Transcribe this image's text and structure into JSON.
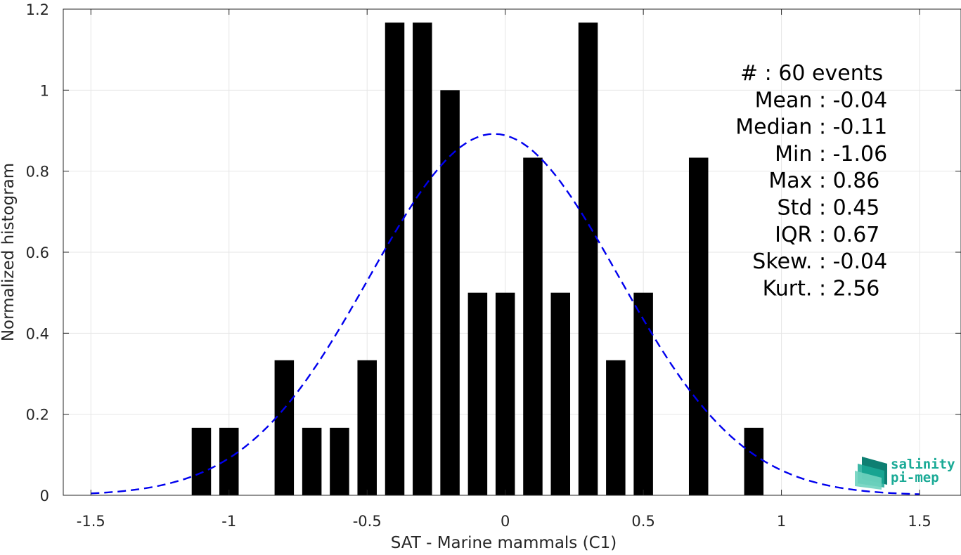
{
  "chart_data": {
    "type": "bar",
    "title": "",
    "xlabel": "SAT - Marine mammals (C1)",
    "ylabel": "Normalized histogram",
    "xlim": [
      -1.6,
      1.65
    ],
    "ylim": [
      0,
      1.2
    ],
    "xticks": [
      -1.5,
      -1,
      -0.5,
      0,
      0.5,
      1,
      1.5
    ],
    "xtick_labels": [
      "-1.5",
      "-1",
      "-0.5",
      "0",
      "0.5",
      "1",
      "1.5"
    ],
    "yticks": [
      0,
      0.2,
      0.4,
      0.6,
      0.8,
      1,
      1.2
    ],
    "ytick_labels": [
      "0",
      "0.2",
      "0.4",
      "0.6",
      "0.8",
      "1",
      "1.2"
    ],
    "grid": true,
    "bar_color": "#000000",
    "bar_width": 0.07,
    "bars": [
      {
        "x": -1.1,
        "y": 0.1667
      },
      {
        "x": -1.0,
        "y": 0.1667
      },
      {
        "x": -0.8,
        "y": 0.3333
      },
      {
        "x": -0.7,
        "y": 0.1667
      },
      {
        "x": -0.6,
        "y": 0.1667
      },
      {
        "x": -0.5,
        "y": 0.3333
      },
      {
        "x": -0.4,
        "y": 1.1667
      },
      {
        "x": -0.3,
        "y": 1.1667
      },
      {
        "x": -0.2,
        "y": 1.0
      },
      {
        "x": -0.1,
        "y": 0.5
      },
      {
        "x": 0.0,
        "y": 0.5
      },
      {
        "x": 0.1,
        "y": 0.8333
      },
      {
        "x": 0.2,
        "y": 0.5
      },
      {
        "x": 0.3,
        "y": 1.1667
      },
      {
        "x": 0.4,
        "y": 0.3333
      },
      {
        "x": 0.5,
        "y": 0.5
      },
      {
        "x": 0.7,
        "y": 0.8333
      },
      {
        "x": 0.9,
        "y": 0.1667
      }
    ],
    "fit_curve": {
      "color": "#0000ee",
      "style": "dashed",
      "mean": -0.04,
      "std": 0.45,
      "x_range": [
        -1.5,
        1.5
      ],
      "points": [
        [
          -0.1,
          0.888
        ],
        [
          0.0,
          0.892
        ],
        [
          0.1,
          0.85
        ]
      ]
    }
  },
  "stats": [
    {
      "label": "#",
      "sep": " : ",
      "value": "60 events"
    },
    {
      "label": "Mean",
      "sep": " : ",
      "value": "-0.04"
    },
    {
      "label": "Median",
      "sep": " : ",
      "value": "-0.11"
    },
    {
      "label": "Min",
      "sep": " : ",
      "value": "-1.06"
    },
    {
      "label": "Max",
      "sep": " : ",
      "value": "0.86"
    },
    {
      "label": "Std",
      "sep": " : ",
      "value": "0.45"
    },
    {
      "label": "IQR",
      "sep": " : ",
      "value": "0.67"
    },
    {
      "label": "Skew.",
      "sep": " : ",
      "value": "-0.04"
    },
    {
      "label": "Kurt.",
      "sep": " : ",
      "value": "2.56"
    }
  ],
  "logo": {
    "line1": "salinity",
    "line2": "pi-mep",
    "colors": [
      "#1aaa96",
      "#6fd3bf",
      "#0e7f72"
    ]
  }
}
